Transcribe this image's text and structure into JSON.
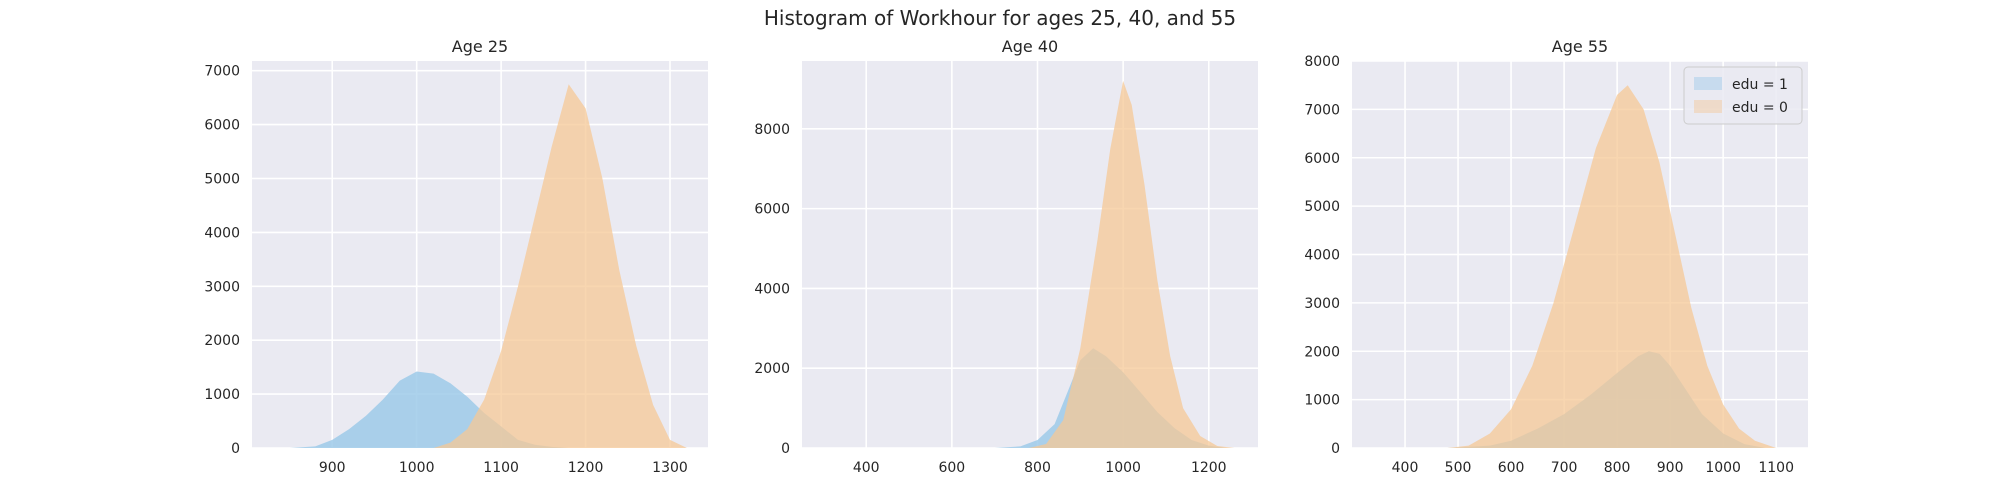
{
  "figure": {
    "title": "Histogram of Workhour for ages 25, 40, and 55"
  },
  "colors": {
    "background": "#EAEAF2",
    "grid": "#FFFFFF",
    "edu1": "#9ECAE9",
    "edu0": "#F5C896",
    "overlap": "#C8C8A0"
  },
  "chart_data": [
    {
      "type": "area",
      "title": "Age 25",
      "xlim": [
        805,
        1345
      ],
      "ylim": [
        0,
        7180
      ],
      "xticks": [
        900,
        1000,
        1100,
        1200,
        1300
      ],
      "yticks": [
        0,
        1000,
        2000,
        3000,
        4000,
        5000,
        6000,
        7000
      ],
      "grid": true,
      "series": [
        {
          "name": "edu = 1",
          "points": [
            [
              850,
              0
            ],
            [
              880,
              30
            ],
            [
              900,
              150
            ],
            [
              920,
              350
            ],
            [
              940,
              600
            ],
            [
              960,
              900
            ],
            [
              980,
              1250
            ],
            [
              1000,
              1420
            ],
            [
              1020,
              1380
            ],
            [
              1040,
              1200
            ],
            [
              1060,
              950
            ],
            [
              1080,
              650
            ],
            [
              1100,
              400
            ],
            [
              1120,
              150
            ],
            [
              1140,
              60
            ],
            [
              1160,
              20
            ],
            [
              1180,
              0
            ]
          ]
        },
        {
          "name": "edu = 0",
          "points": [
            [
              1020,
              0
            ],
            [
              1040,
              100
            ],
            [
              1060,
              350
            ],
            [
              1080,
              900
            ],
            [
              1100,
              1800
            ],
            [
              1120,
              3000
            ],
            [
              1140,
              4300
            ],
            [
              1160,
              5600
            ],
            [
              1180,
              6750
            ],
            [
              1200,
              6300
            ],
            [
              1220,
              5000
            ],
            [
              1240,
              3300
            ],
            [
              1260,
              1900
            ],
            [
              1280,
              800
            ],
            [
              1300,
              150
            ],
            [
              1320,
              0
            ]
          ]
        }
      ]
    },
    {
      "type": "area",
      "title": "Age 40",
      "xlim": [
        250,
        1315
      ],
      "ylim": [
        0,
        9700
      ],
      "xticks": [
        400,
        600,
        800,
        1000,
        1200
      ],
      "yticks": [
        0,
        2000,
        4000,
        6000,
        8000
      ],
      "grid": true,
      "series": [
        {
          "name": "edu = 1",
          "points": [
            [
              700,
              0
            ],
            [
              760,
              40
            ],
            [
              800,
              200
            ],
            [
              840,
              600
            ],
            [
              870,
              1400
            ],
            [
              900,
              2200
            ],
            [
              930,
              2500
            ],
            [
              960,
              2300
            ],
            [
              1000,
              1900
            ],
            [
              1040,
              1400
            ],
            [
              1080,
              900
            ],
            [
              1120,
              500
            ],
            [
              1160,
              200
            ],
            [
              1200,
              60
            ],
            [
              1240,
              0
            ]
          ]
        },
        {
          "name": "edu = 0",
          "points": [
            [
              780,
              0
            ],
            [
              820,
              100
            ],
            [
              860,
              700
            ],
            [
              900,
              2500
            ],
            [
              940,
              5200
            ],
            [
              970,
              7500
            ],
            [
              1000,
              9200
            ],
            [
              1020,
              8600
            ],
            [
              1050,
              6600
            ],
            [
              1080,
              4200
            ],
            [
              1110,
              2300
            ],
            [
              1140,
              1000
            ],
            [
              1180,
              300
            ],
            [
              1220,
              50
            ],
            [
              1260,
              0
            ]
          ]
        }
      ]
    },
    {
      "type": "area",
      "title": "Age 55",
      "xlim": [
        300,
        1160
      ],
      "ylim": [
        0,
        8000
      ],
      "xticks": [
        400,
        500,
        600,
        700,
        800,
        900,
        1000,
        1100
      ],
      "yticks": [
        0,
        1000,
        2000,
        3000,
        4000,
        5000,
        6000,
        7000,
        8000
      ],
      "grid": true,
      "legend": {
        "loc": "top-right",
        "entries": [
          "edu = 1",
          "edu = 0"
        ]
      },
      "series": [
        {
          "name": "edu = 1",
          "points": [
            [
              480,
              0
            ],
            [
              560,
              50
            ],
            [
              600,
              150
            ],
            [
              650,
              400
            ],
            [
              700,
              700
            ],
            [
              750,
              1100
            ],
            [
              800,
              1550
            ],
            [
              840,
              1900
            ],
            [
              860,
              2000
            ],
            [
              880,
              1950
            ],
            [
              900,
              1700
            ],
            [
              930,
              1200
            ],
            [
              960,
              700
            ],
            [
              1000,
              300
            ],
            [
              1040,
              80
            ],
            [
              1080,
              0
            ]
          ]
        },
        {
          "name": "edu = 0",
          "points": [
            [
              480,
              0
            ],
            [
              520,
              50
            ],
            [
              560,
              300
            ],
            [
              600,
              800
            ],
            [
              640,
              1700
            ],
            [
              680,
              3000
            ],
            [
              720,
              4600
            ],
            [
              760,
              6200
            ],
            [
              800,
              7300
            ],
            [
              820,
              7500
            ],
            [
              850,
              7000
            ],
            [
              880,
              5900
            ],
            [
              910,
              4400
            ],
            [
              940,
              2900
            ],
            [
              970,
              1700
            ],
            [
              1000,
              900
            ],
            [
              1030,
              400
            ],
            [
              1060,
              150
            ],
            [
              1100,
              0
            ]
          ]
        }
      ]
    }
  ]
}
